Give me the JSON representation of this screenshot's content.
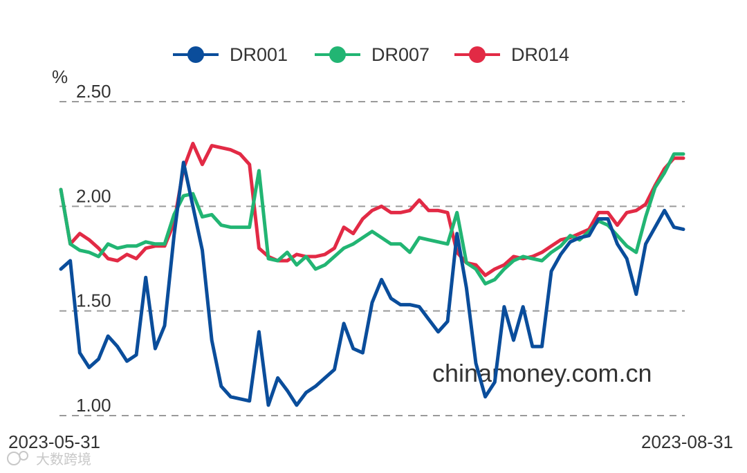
{
  "watermark": "chinamoney.com.cn",
  "logo_text": "大数跨境",
  "chart_data": {
    "type": "line",
    "ylabel": "%",
    "ylim": [
      1.0,
      2.5
    ],
    "yticks": [
      "1.00",
      "1.50",
      "2.00",
      "2.50"
    ],
    "ytick_values": [
      1.0,
      1.5,
      2.0,
      2.5
    ],
    "grid": true,
    "legend_position": "top",
    "x_start_label": "2023-05-31",
    "x_end_label": "2023-08-31",
    "series": [
      {
        "name": "DR001",
        "color": "#0a4d9b",
        "values": [
          1.7,
          1.74,
          1.3,
          1.23,
          1.27,
          1.38,
          1.33,
          1.26,
          1.29,
          1.66,
          1.32,
          1.43,
          1.86,
          2.21,
          2.0,
          1.79,
          1.36,
          1.14,
          1.09,
          1.08,
          1.07,
          1.4,
          1.05,
          1.18,
          1.12,
          1.05,
          1.11,
          1.14,
          1.18,
          1.22,
          1.44,
          1.32,
          1.3,
          1.54,
          1.65,
          1.56,
          1.53,
          1.53,
          1.52,
          1.46,
          1.4,
          1.45,
          1.87,
          1.61,
          1.25,
          1.09,
          1.16,
          1.52,
          1.36,
          1.52,
          1.33,
          1.33,
          1.69,
          1.77,
          1.83,
          1.85,
          1.86,
          1.94,
          1.94,
          1.82,
          1.75,
          1.58,
          1.82,
          1.9,
          1.98,
          1.9,
          1.89
        ]
      },
      {
        "name": "DR007",
        "color": "#22b573",
        "values": [
          2.08,
          1.82,
          1.79,
          1.78,
          1.76,
          1.82,
          1.8,
          1.81,
          1.81,
          1.83,
          1.82,
          1.82,
          1.96,
          2.05,
          2.06,
          1.95,
          1.96,
          1.91,
          1.9,
          1.9,
          1.9,
          2.17,
          1.75,
          1.74,
          1.78,
          1.72,
          1.76,
          1.7,
          1.72,
          1.76,
          1.8,
          1.82,
          1.85,
          1.88,
          1.85,
          1.82,
          1.82,
          1.78,
          1.85,
          1.84,
          1.83,
          1.82,
          1.97,
          1.73,
          1.7,
          1.63,
          1.65,
          1.7,
          1.74,
          1.76,
          1.75,
          1.74,
          1.78,
          1.81,
          1.86,
          1.84,
          1.88,
          1.93,
          1.91,
          1.86,
          1.81,
          1.78,
          1.95,
          2.09,
          2.16,
          2.25,
          2.25
        ]
      },
      {
        "name": "DR014",
        "color": "#e22a45",
        "values": [
          2.08,
          1.82,
          1.87,
          1.84,
          1.8,
          1.75,
          1.74,
          1.77,
          1.75,
          1.8,
          1.81,
          1.81,
          1.92,
          2.18,
          2.3,
          2.2,
          2.29,
          2.28,
          2.27,
          2.25,
          2.2,
          1.8,
          1.76,
          1.74,
          1.74,
          1.77,
          1.76,
          1.76,
          1.77,
          1.8,
          1.9,
          1.87,
          1.94,
          1.98,
          2.0,
          1.97,
          1.97,
          1.98,
          2.03,
          1.98,
          1.98,
          1.97,
          1.78,
          1.73,
          1.72,
          1.67,
          1.7,
          1.72,
          1.76,
          1.75,
          1.76,
          1.78,
          1.81,
          1.84,
          1.85,
          1.87,
          1.89,
          1.97,
          1.97,
          1.91,
          1.97,
          1.98,
          2.01,
          2.1,
          2.18,
          2.23,
          2.23
        ]
      }
    ]
  }
}
